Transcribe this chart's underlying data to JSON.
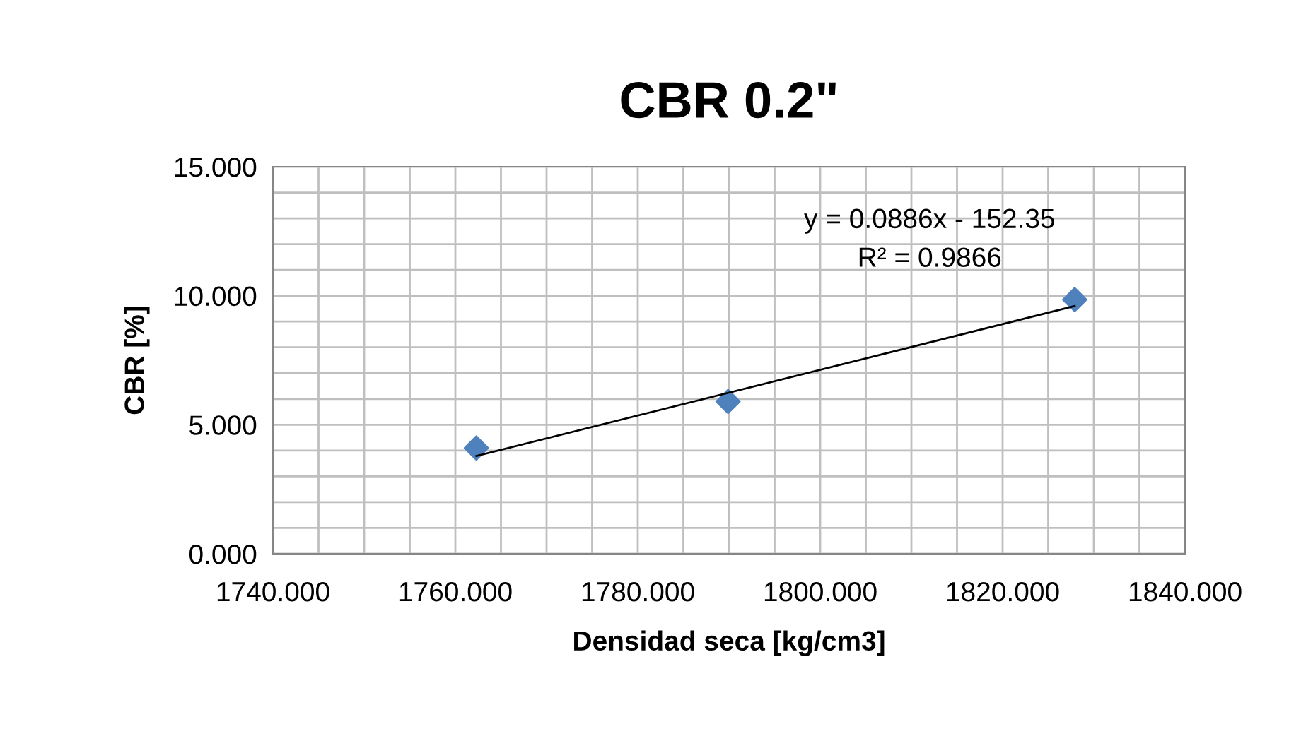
{
  "chart_data": {
    "type": "scatter",
    "title": "CBR 0.2\"",
    "xlabel": "Densidad seca [kg/cm3]",
    "ylabel": "CBR [%]",
    "annotations": [
      "y = 0.0886x - 152.35",
      "R² = 0.9866"
    ],
    "series": [
      {
        "color": "#4f81bd",
        "marker": "diamond",
        "x": [
          1762.3,
          1789.9,
          1827.9
        ],
        "values": [
          4.1,
          5.9,
          9.85
        ]
      },
      {
        "type": "line",
        "color": "#000000",
        "marker": "none",
        "x": [
          1762.3,
          1827.9
        ],
        "values": [
          3.79,
          9.6
        ]
      }
    ],
    "xlim": [
      1740,
      1840
    ],
    "ylim": [
      0,
      15
    ],
    "xticks": [
      {
        "value": 1740,
        "label": "1740.000"
      },
      {
        "value": 1745,
        "label": null
      },
      {
        "value": 1750,
        "label": null
      },
      {
        "value": 1755,
        "label": null
      },
      {
        "value": 1760,
        "label": "1760.000"
      },
      {
        "value": 1765,
        "label": null
      },
      {
        "value": 1770,
        "label": null
      },
      {
        "value": 1775,
        "label": null
      },
      {
        "value": 1780,
        "label": "1780.000"
      },
      {
        "value": 1785,
        "label": null
      },
      {
        "value": 1790,
        "label": null
      },
      {
        "value": 1795,
        "label": null
      },
      {
        "value": 1800,
        "label": "1800.000"
      },
      {
        "value": 1805,
        "label": null
      },
      {
        "value": 1810,
        "label": null
      },
      {
        "value": 1815,
        "label": null
      },
      {
        "value": 1820,
        "label": "1820.000"
      },
      {
        "value": 1825,
        "label": null
      },
      {
        "value": 1830,
        "label": null
      },
      {
        "value": 1835,
        "label": null
      },
      {
        "value": 1840,
        "label": "1840.000"
      }
    ],
    "yticks": [
      {
        "value": 0,
        "label": "0.000"
      },
      {
        "value": 1,
        "label": null
      },
      {
        "value": 2,
        "label": null
      },
      {
        "value": 3,
        "label": null
      },
      {
        "value": 4,
        "label": null
      },
      {
        "value": 5,
        "label": "5.000"
      },
      {
        "value": 6,
        "label": null
      },
      {
        "value": 7,
        "label": null
      },
      {
        "value": 8,
        "label": null
      },
      {
        "value": 9,
        "label": null
      },
      {
        "value": 10,
        "label": "10.000"
      },
      {
        "value": 11,
        "label": null
      },
      {
        "value": 12,
        "label": null
      },
      {
        "value": 13,
        "label": null
      },
      {
        "value": 14,
        "label": null
      },
      {
        "value": 15,
        "label": "15.000"
      }
    ],
    "grid": true,
    "legend": false
  }
}
